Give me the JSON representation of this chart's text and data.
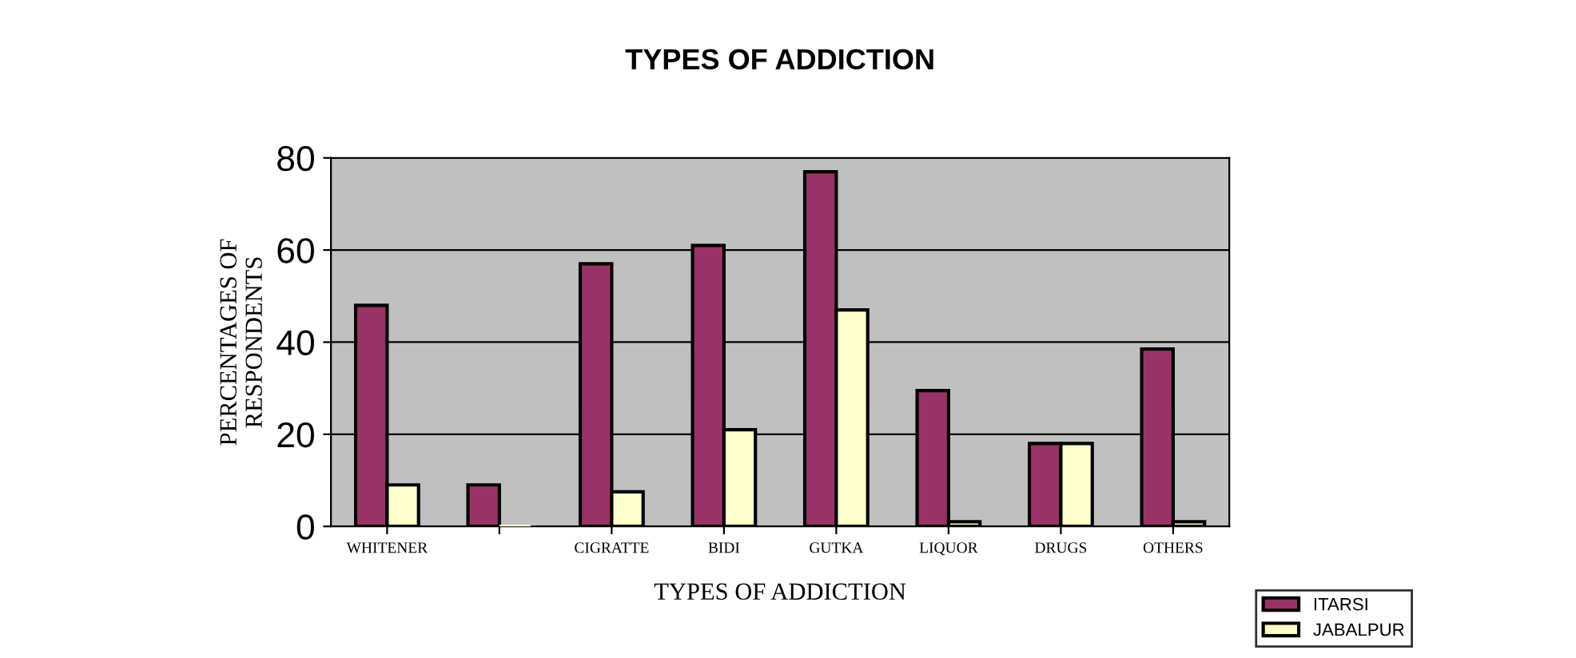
{
  "chart_data": {
    "type": "bar",
    "title": "TYPES OF ADDICTION",
    "xlabel": "TYPES OF ADDICTION",
    "ylabel": "PERCENTAGES OF\nRESPONDENTS",
    "categories": [
      "WHITENER",
      null,
      "CIGRATTE",
      "BIDI",
      "GUTKA",
      "LIQUOR",
      "DRUGS",
      "OTHERS"
    ],
    "series": [
      {
        "name": "ITARSI",
        "color": "#993366",
        "values": [
          48,
          9,
          57,
          61,
          77,
          29.5,
          18,
          38.5
        ]
      },
      {
        "name": "JABALPUR",
        "color": "#ffffcc",
        "values": [
          9,
          0,
          7.5,
          21,
          47,
          1,
          18,
          1
        ]
      }
    ],
    "ylim": [
      0,
      80
    ],
    "yticks": [
      0,
      20,
      40,
      60,
      80
    ],
    "grid": "y",
    "legend": "bottom right"
  }
}
